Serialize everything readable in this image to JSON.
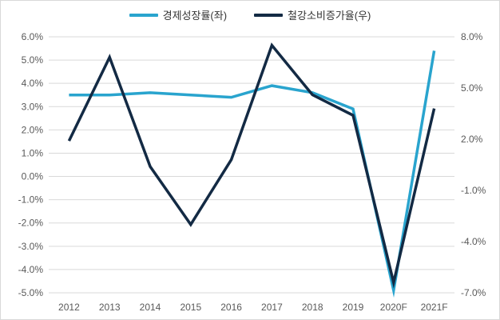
{
  "legend": {
    "items": [
      {
        "label": "경제성장률(좌)",
        "color": "#29A4CE"
      },
      {
        "label": "철강소비증가율(우)",
        "color": "#132A44"
      }
    ]
  },
  "chart_data": {
    "type": "line",
    "title": "",
    "categories": [
      "2012",
      "2013",
      "2014",
      "2015",
      "2016",
      "2017",
      "2018",
      "2019",
      "2020F",
      "2021F"
    ],
    "series": [
      {
        "name": "경제성장률(좌)",
        "axis": "left",
        "color": "#29A4CE",
        "stroke_width": 3.5,
        "values": [
          3.5,
          3.5,
          3.6,
          3.5,
          3.4,
          3.9,
          3.6,
          2.9,
          -4.9,
          5.4
        ]
      },
      {
        "name": "철강소비증가율(우)",
        "axis": "right",
        "color": "#132A44",
        "stroke_width": 3.5,
        "values": [
          1.9,
          6.8,
          0.4,
          -3.0,
          0.8,
          7.5,
          4.6,
          3.4,
          -6.4,
          3.8
        ]
      }
    ],
    "left_axis": {
      "min": -5,
      "max": 6,
      "step": 1,
      "tick_labels": [
        "6.0%",
        "5.0%",
        "4.0%",
        "3.0%",
        "2.0%",
        "1.0%",
        "0.0%",
        "-1.0%",
        "-2.0%",
        "-3.0%",
        "-4.0%",
        "-5.0%"
      ]
    },
    "right_axis": {
      "min": -7,
      "max": 8,
      "step": 3,
      "tick_labels": [
        "8.0%",
        "5.0%",
        "2.0%",
        "-1.0%",
        "-4.0%",
        "-7.0%"
      ]
    },
    "grid": true,
    "legend_position": "top",
    "colors": {
      "gridline": "#D9D9D9",
      "tick_text": "#595959",
      "background": "#FFFFFF",
      "border": "#D9D9D9"
    }
  }
}
